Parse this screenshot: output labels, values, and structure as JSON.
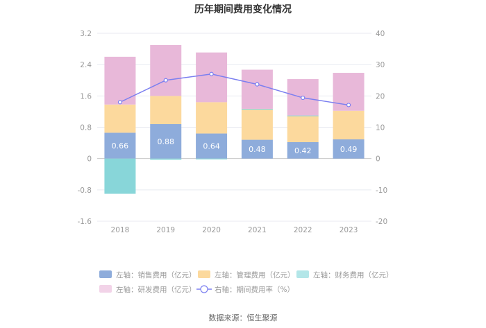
{
  "chart_data": {
    "type": "bar",
    "title": "历年期间费用变化情况",
    "categories": [
      "2018",
      "2019",
      "2020",
      "2021",
      "2022",
      "2023"
    ],
    "left_axis": {
      "ylim": [
        -1.6,
        3.2
      ],
      "ticks": [
        "-1.6",
        "-0.8",
        "0",
        "0.8",
        "1.6",
        "2.4",
        "3.2"
      ]
    },
    "right_axis": {
      "ylim": [
        -20,
        40
      ],
      "ticks": [
        "-20",
        "-10",
        "0",
        "10",
        "20",
        "30",
        "40"
      ]
    },
    "series": [
      {
        "name": "左轴：销售费用（亿元）",
        "axis": "left",
        "stack": "total",
        "color": "#8eacdb",
        "values": [
          0.66,
          0.88,
          0.64,
          0.48,
          0.42,
          0.49
        ],
        "labels": [
          "0.66",
          "0.88",
          "0.64",
          "0.48",
          "0.42",
          "0.49"
        ]
      },
      {
        "name": "左轴：管理费用（亿元）",
        "axis": "left",
        "stack": "total",
        "color": "#fcd99d",
        "values": [
          0.72,
          0.72,
          0.8,
          0.77,
          0.67,
          0.73
        ]
      },
      {
        "name": "左轴：财务费用（亿元）",
        "axis": "left",
        "stack": "total",
        "color": "#88d6d9",
        "values": [
          -0.9,
          -0.03,
          -0.02,
          0.02,
          0.01,
          0.0
        ]
      },
      {
        "name": "左轴：研发费用（亿元）",
        "axis": "left",
        "stack": "total",
        "color": "#e8b8d9",
        "values": [
          1.22,
          1.3,
          1.27,
          1.0,
          0.93,
          0.97
        ]
      },
      {
        "name": "右轴：期间费用率（%）",
        "axis": "right",
        "type": "line",
        "color": "#7b7ff0",
        "values": [
          18.0,
          25.0,
          27.0,
          23.7,
          19.4,
          17.1
        ]
      }
    ],
    "legend": [
      {
        "name": "左轴：销售费用（亿元）",
        "kind": "rect",
        "color": "#8eacdb"
      },
      {
        "name": "左轴：管理费用（亿元）",
        "kind": "rect",
        "color": "#fcd99d"
      },
      {
        "name": "左轴：财务费用（亿元）",
        "kind": "rect",
        "color": "#b3e6e8"
      },
      {
        "name": "左轴：研发费用（亿元）",
        "kind": "rect",
        "color": "#f2d3e8"
      },
      {
        "name": "右轴：期间费用率（%）",
        "kind": "line",
        "color": "#7b7ff0"
      }
    ],
    "legend_position": "bottom",
    "source": "数据来源：恒生聚源"
  }
}
